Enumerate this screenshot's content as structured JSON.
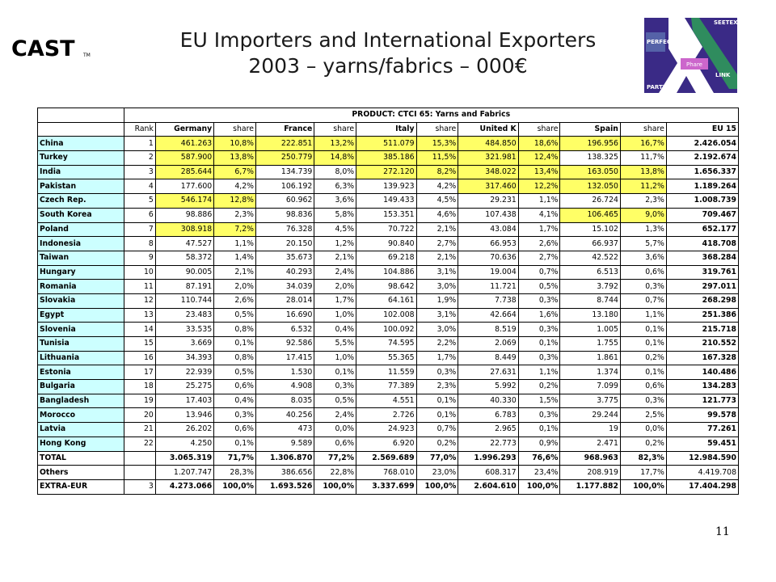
{
  "header": {
    "title_line1": "EU Importers and International Exporters",
    "title_line2": "2003 – yarns/fabrics – 000€",
    "left_logo_text": "CAST",
    "right_logo_labels": [
      "PERFECT",
      "SEETEX",
      "Phare",
      "PARTEX",
      "LINK"
    ]
  },
  "table": {
    "product_label": "PRODUCT: CTCI 65: Yarns and Fabrics",
    "columns": [
      "Rank",
      "Germany",
      "share",
      "France",
      "share",
      "Italy",
      "share",
      "United K",
      "share",
      "Spain",
      "share",
      "EU 15"
    ],
    "rows": [
      {
        "country": "China",
        "rank": "1",
        "cells": [
          "461.263",
          "10,8%",
          "222.851",
          "13,2%",
          "511.079",
          "15,3%",
          "484.850",
          "18,6%",
          "196.956",
          "16,7%"
        ],
        "eu": "2.426.054",
        "hl": [
          "y",
          "y",
          "y",
          "y",
          "y",
          "y",
          "y",
          "y",
          "y",
          "y"
        ]
      },
      {
        "country": "Turkey",
        "rank": "2",
        "cells": [
          "587.900",
          "13,8%",
          "250.779",
          "14,8%",
          "385.186",
          "11,5%",
          "321.981",
          "12,4%",
          "138.325",
          "11,7%"
        ],
        "eu": "2.192.674",
        "hl": [
          "y",
          "y",
          "y",
          "y",
          "y",
          "y",
          "y",
          "y",
          "n",
          "n"
        ]
      },
      {
        "country": "India",
        "rank": "3",
        "cells": [
          "285.644",
          "6,7%",
          "134.739",
          "8,0%",
          "272.120",
          "8,2%",
          "348.022",
          "13,4%",
          "163.050",
          "13,8%"
        ],
        "eu": "1.656.337",
        "hl": [
          "y",
          "y",
          "n",
          "n",
          "y",
          "y",
          "y",
          "y",
          "y",
          "y"
        ]
      },
      {
        "country": "Pakistan",
        "rank": "4",
        "cells": [
          "177.600",
          "4,2%",
          "106.192",
          "6,3%",
          "139.923",
          "4,2%",
          "317.460",
          "12,2%",
          "132.050",
          "11,2%"
        ],
        "eu": "1.189.264",
        "hl": [
          "n",
          "n",
          "n",
          "n",
          "n",
          "n",
          "y",
          "y",
          "y",
          "y"
        ]
      },
      {
        "country": "Czech Rep.",
        "rank": "5",
        "cells": [
          "546.174",
          "12,8%",
          "60.962",
          "3,6%",
          "149.433",
          "4,5%",
          "29.231",
          "1,1%",
          "26.724",
          "2,3%"
        ],
        "eu": "1.008.739",
        "hl": [
          "y",
          "y",
          "n",
          "n",
          "n",
          "n",
          "n",
          "n",
          "n",
          "n"
        ]
      },
      {
        "country": "South Korea",
        "rank": "6",
        "cells": [
          "98.886",
          "2,3%",
          "98.836",
          "5,8%",
          "153.351",
          "4,6%",
          "107.438",
          "4,1%",
          "106.465",
          "9,0%"
        ],
        "eu": "709.467",
        "hl": [
          "n",
          "n",
          "n",
          "n",
          "n",
          "n",
          "n",
          "n",
          "y",
          "y"
        ]
      },
      {
        "country": "Poland",
        "rank": "7",
        "cells": [
          "308.918",
          "7,2%",
          "76.328",
          "4,5%",
          "70.722",
          "2,1%",
          "43.084",
          "1,7%",
          "15.102",
          "1,3%"
        ],
        "eu": "652.177",
        "hl": [
          "y",
          "y",
          "n",
          "n",
          "n",
          "n",
          "n",
          "n",
          "n",
          "n"
        ]
      },
      {
        "country": "Indonesia",
        "rank": "8",
        "cells": [
          "47.527",
          "1,1%",
          "20.150",
          "1,2%",
          "90.840",
          "2,7%",
          "66.953",
          "2,6%",
          "66.937",
          "5,7%"
        ],
        "eu": "418.708",
        "hl": [
          "n",
          "n",
          "n",
          "n",
          "n",
          "n",
          "n",
          "n",
          "n",
          "n"
        ]
      },
      {
        "country": "Taiwan",
        "rank": "9",
        "cells": [
          "58.372",
          "1,4%",
          "35.673",
          "2,1%",
          "69.218",
          "2,1%",
          "70.636",
          "2,7%",
          "42.522",
          "3,6%"
        ],
        "eu": "368.284",
        "hl": [
          "n",
          "n",
          "n",
          "n",
          "n",
          "n",
          "n",
          "n",
          "n",
          "n"
        ]
      },
      {
        "country": "Hungary",
        "rank": "10",
        "cells": [
          "90.005",
          "2,1%",
          "40.293",
          "2,4%",
          "104.886",
          "3,1%",
          "19.004",
          "0,7%",
          "6.513",
          "0,6%"
        ],
        "eu": "319.761",
        "hl": [
          "n",
          "n",
          "n",
          "n",
          "n",
          "n",
          "n",
          "n",
          "n",
          "n"
        ]
      },
      {
        "country": "Romania",
        "rank": "11",
        "cells": [
          "87.191",
          "2,0%",
          "34.039",
          "2,0%",
          "98.642",
          "3,0%",
          "11.721",
          "0,5%",
          "3.792",
          "0,3%"
        ],
        "eu": "297.011",
        "hl": [
          "n",
          "n",
          "n",
          "n",
          "n",
          "n",
          "n",
          "n",
          "n",
          "n"
        ]
      },
      {
        "country": "Slovakia",
        "rank": "12",
        "cells": [
          "110.744",
          "2,6%",
          "28.014",
          "1,7%",
          "64.161",
          "1,9%",
          "7.738",
          "0,3%",
          "8.744",
          "0,7%"
        ],
        "eu": "268.298",
        "hl": [
          "n",
          "n",
          "n",
          "n",
          "n",
          "n",
          "n",
          "n",
          "n",
          "n"
        ]
      },
      {
        "country": "Egypt",
        "rank": "13",
        "cells": [
          "23.483",
          "0,5%",
          "16.690",
          "1,0%",
          "102.008",
          "3,1%",
          "42.664",
          "1,6%",
          "13.180",
          "1,1%"
        ],
        "eu": "251.386",
        "hl": [
          "n",
          "n",
          "n",
          "n",
          "n",
          "n",
          "n",
          "n",
          "n",
          "n"
        ]
      },
      {
        "country": "Slovenia",
        "rank": "14",
        "cells": [
          "33.535",
          "0,8%",
          "6.532",
          "0,4%",
          "100.092",
          "3,0%",
          "8.519",
          "0,3%",
          "1.005",
          "0,1%"
        ],
        "eu": "215.718",
        "hl": [
          "n",
          "n",
          "n",
          "n",
          "n",
          "n",
          "n",
          "n",
          "n",
          "n"
        ]
      },
      {
        "country": "Tunisia",
        "rank": "15",
        "cells": [
          "3.669",
          "0,1%",
          "92.586",
          "5,5%",
          "74.595",
          "2,2%",
          "2.069",
          "0,1%",
          "1.755",
          "0,1%"
        ],
        "eu": "210.552",
        "hl": [
          "n",
          "n",
          "n",
          "n",
          "n",
          "n",
          "n",
          "n",
          "n",
          "n"
        ]
      },
      {
        "country": "Lithuania",
        "rank": "16",
        "cells": [
          "34.393",
          "0,8%",
          "17.415",
          "1,0%",
          "55.365",
          "1,7%",
          "8.449",
          "0,3%",
          "1.861",
          "0,2%"
        ],
        "eu": "167.328",
        "hl": [
          "n",
          "n",
          "n",
          "n",
          "n",
          "n",
          "n",
          "n",
          "n",
          "n"
        ]
      },
      {
        "country": "Estonia",
        "rank": "17",
        "cells": [
          "22.939",
          "0,5%",
          "1.530",
          "0,1%",
          "11.559",
          "0,3%",
          "27.631",
          "1,1%",
          "1.374",
          "0,1%"
        ],
        "eu": "140.486",
        "hl": [
          "n",
          "n",
          "n",
          "n",
          "n",
          "n",
          "n",
          "n",
          "n",
          "n"
        ]
      },
      {
        "country": "Bulgaria",
        "rank": "18",
        "cells": [
          "25.275",
          "0,6%",
          "4.908",
          "0,3%",
          "77.389",
          "2,3%",
          "5.992",
          "0,2%",
          "7.099",
          "0,6%"
        ],
        "eu": "134.283",
        "hl": [
          "n",
          "n",
          "n",
          "n",
          "n",
          "n",
          "n",
          "n",
          "n",
          "n"
        ]
      },
      {
        "country": "Bangladesh",
        "rank": "19",
        "cells": [
          "17.403",
          "0,4%",
          "8.035",
          "0,5%",
          "4.551",
          "0,1%",
          "40.330",
          "1,5%",
          "3.775",
          "0,3%"
        ],
        "eu": "121.773",
        "hl": [
          "n",
          "n",
          "n",
          "n",
          "n",
          "n",
          "n",
          "n",
          "n",
          "n"
        ]
      },
      {
        "country": "Morocco",
        "rank": "20",
        "cells": [
          "13.946",
          "0,3%",
          "40.256",
          "2,4%",
          "2.726",
          "0,1%",
          "6.783",
          "0,3%",
          "29.244",
          "2,5%"
        ],
        "eu": "99.578",
        "hl": [
          "n",
          "n",
          "n",
          "n",
          "n",
          "n",
          "n",
          "n",
          "n",
          "n"
        ]
      },
      {
        "country": "Latvia",
        "rank": "21",
        "cells": [
          "26.202",
          "0,6%",
          "473",
          "0,0%",
          "24.923",
          "0,7%",
          "2.965",
          "0,1%",
          "19",
          "0,0%"
        ],
        "eu": "77.261",
        "hl": [
          "n",
          "n",
          "n",
          "n",
          "n",
          "n",
          "n",
          "n",
          "n",
          "n"
        ]
      },
      {
        "country": "Hong Kong",
        "rank": "22",
        "cells": [
          "4.250",
          "0,1%",
          "9.589",
          "0,6%",
          "6.920",
          "0,2%",
          "22.773",
          "0,9%",
          "2.471",
          "0,2%"
        ],
        "eu": "59.451",
        "hl": [
          "n",
          "n",
          "n",
          "n",
          "n",
          "n",
          "n",
          "n",
          "n",
          "n"
        ]
      }
    ],
    "totals": [
      {
        "country": "TOTAL",
        "rank": "",
        "cells": [
          "3.065.319",
          "71,7%",
          "1.306.870",
          "77,2%",
          "2.569.689",
          "77,0%",
          "1.996.293",
          "76,6%",
          "968.963",
          "82,3%"
        ],
        "eu": "12.984.590",
        "bold": true
      },
      {
        "country": "Others",
        "rank": "",
        "cells": [
          "1.207.747",
          "28,3%",
          "386.656",
          "22,8%",
          "768.010",
          "23,0%",
          "608.317",
          "23,4%",
          "208.919",
          "17,7%"
        ],
        "eu": "4.419.708",
        "bold": false
      },
      {
        "country": "EXTRA-EUR",
        "rank": "3",
        "cells": [
          "4.273.066",
          "100,0%",
          "1.693.526",
          "100,0%",
          "3.337.699",
          "100,0%",
          "2.604.610",
          "100,0%",
          "1.177.882",
          "100,0%"
        ],
        "eu": "17.404.298",
        "bold": true
      }
    ]
  },
  "colors": {
    "highlight_yellow": "#ffff66",
    "country_cyan": "#ccffff"
  },
  "footer": {
    "page_number": "11"
  }
}
